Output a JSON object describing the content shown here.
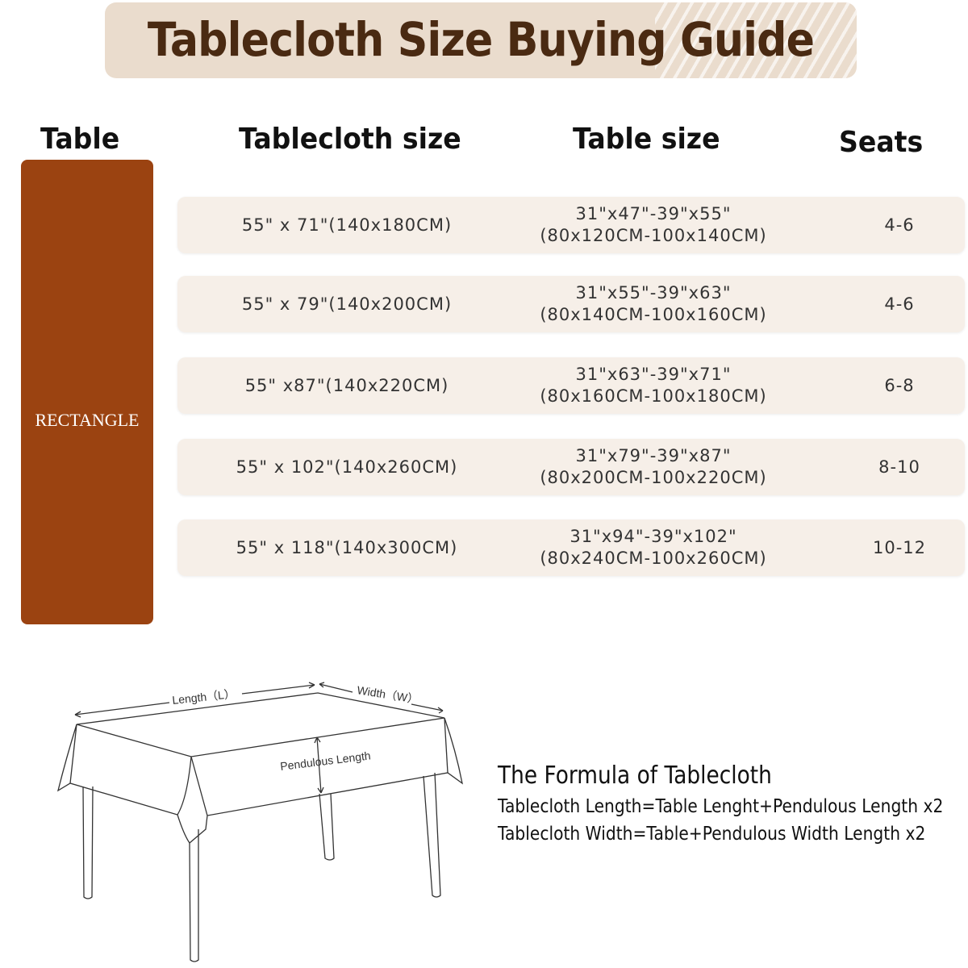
{
  "title": "Tablecloth Size Buying Guide",
  "headers": {
    "table": "Table",
    "tablecloth_size": "Tablecloth size",
    "table_size": "Table size",
    "seats": "Seats"
  },
  "shape": "RECTANGLE",
  "colors": {
    "accent": "#9b4311",
    "banner": "#eadccd",
    "title": "#4a2a12",
    "row": "#f6efe8"
  },
  "rows": [
    {
      "tablecloth": "55\" x 71\"(140x180CM)",
      "table_in": "31\"x47\"-39\"x55\"",
      "table_cm": "(80x120CM-100x140CM)",
      "seats": "4-6"
    },
    {
      "tablecloth": "55\" x 79\"(140x200CM)",
      "table_in": "31\"x55\"-39\"x63\"",
      "table_cm": "(80x140CM-100x160CM)",
      "seats": "4-6"
    },
    {
      "tablecloth": "55\" x87\"(140x220CM)",
      "table_in": "31\"x63\"-39\"x71\"",
      "table_cm": "(80x160CM-100x180CM)",
      "seats": "6-8"
    },
    {
      "tablecloth": "55\" x 102\"(140x260CM)",
      "table_in": "31\"x79\"-39\"x87\"",
      "table_cm": "(80x200CM-100x220CM)",
      "seats": "8-10"
    },
    {
      "tablecloth": "55\" x 118\"(140x300CM)",
      "table_in": "31\"x94\"-39\"x102\"",
      "table_cm": "(80x240CM-100x260CM)",
      "seats": "10-12"
    }
  ],
  "diagram": {
    "length": "Length（L）",
    "width": "Width（W）",
    "pendulous": "Pendulous Length"
  },
  "formula": {
    "title": "The Formula of Tablecloth",
    "line1": "Tablecloth Length=Table Lenght+Pendulous Length x2",
    "line2": "Tablecloth Width=Table+Pendulous Width Length x2"
  }
}
